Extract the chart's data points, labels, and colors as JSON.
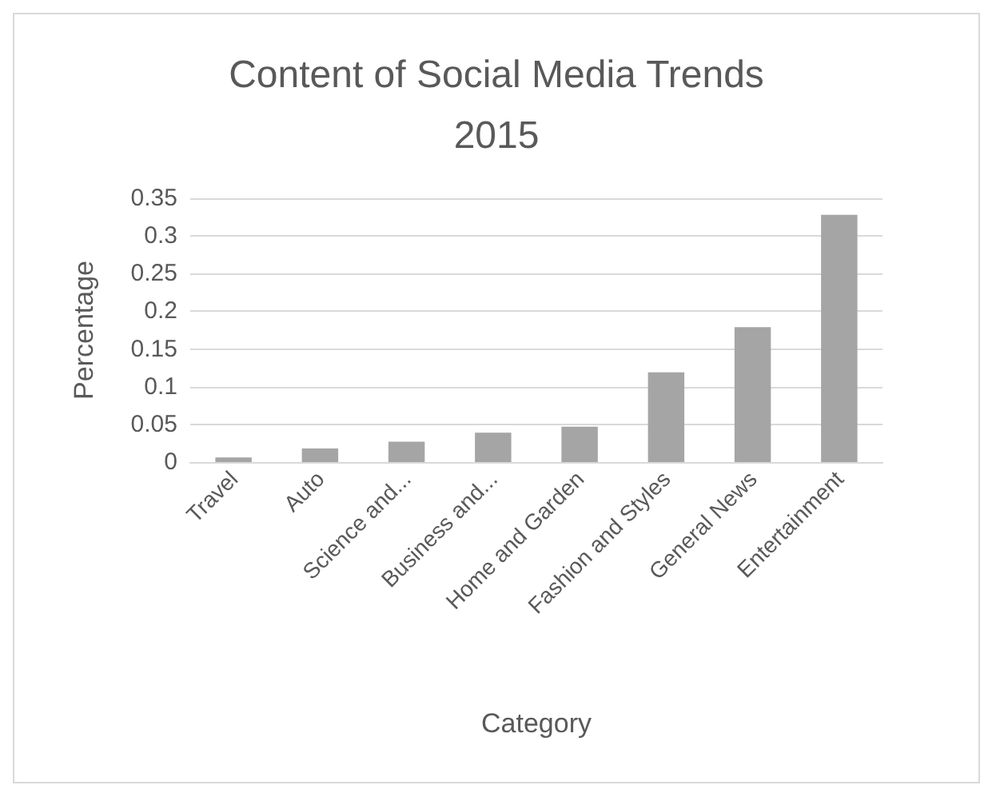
{
  "chart_data": {
    "type": "bar",
    "title": "Content of Social Media Trends\n2015",
    "xlabel": "Category",
    "ylabel": "Percentage",
    "categories": [
      "Travel",
      "Auto",
      "Science and...",
      "Business and...",
      "Home and Garden",
      "Fashion and Styles",
      "General News",
      "Entertainment"
    ],
    "values": [
      0.006,
      0.018,
      0.027,
      0.039,
      0.047,
      0.119,
      0.179,
      0.328
    ],
    "color": "#a5a5a5",
    "ylim": [
      0,
      0.35
    ],
    "yticks": [
      0,
      0.05,
      0.1,
      0.15,
      0.2,
      0.25,
      0.3,
      0.35
    ],
    "grid": "y"
  }
}
